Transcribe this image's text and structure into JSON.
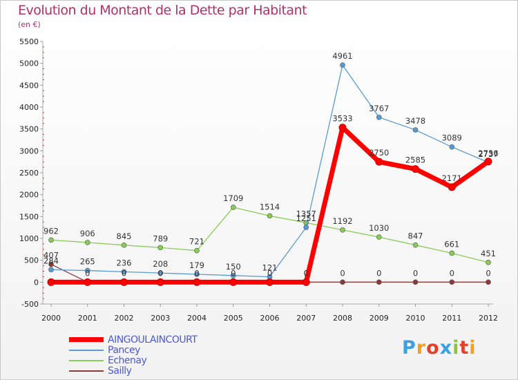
{
  "title": "Evolution du Montant de la Dette par Habitant",
  "subtitle": "(en €)",
  "brand": "Proxiti",
  "chart_data": {
    "type": "line",
    "title": "Evolution du Montant de la Dette par Habitant",
    "ylabel": "(en €)",
    "xlabel": "",
    "categories": [
      "2000",
      "2001",
      "2002",
      "2003",
      "2004",
      "2005",
      "2006",
      "2007",
      "2008",
      "2009",
      "2010",
      "2011",
      "2012"
    ],
    "ylim": [
      -500,
      5500
    ],
    "yticks": [
      -500,
      0,
      500,
      1000,
      1500,
      2000,
      2500,
      3000,
      3500,
      4000,
      4500,
      5000,
      5500
    ],
    "grid": false,
    "legend_position": "bottom-left",
    "series": [
      {
        "name": "AINGOULAINCOURT",
        "color": "#ff0000",
        "values": [
          0,
          0,
          0,
          0,
          0,
          0,
          0,
          0,
          3533,
          2750,
          2585,
          2171,
          2756
        ],
        "labels": [
          "",
          "",
          "",
          "",
          "",
          "",
          "",
          "0",
          "3533",
          "2750",
          "2585",
          "2171",
          "2756"
        ]
      },
      {
        "name": "Pancey",
        "color": "#5a9ad0",
        "values": [
          284,
          265,
          236,
          208,
          179,
          150,
          121,
          1251,
          4961,
          3767,
          3478,
          3089,
          2737
        ],
        "labels": [
          "284",
          "265",
          "236",
          "208",
          "179",
          "150",
          "121",
          "1251",
          "4961",
          "3767",
          "3478",
          "3089",
          "2737"
        ]
      },
      {
        "name": "Echenay",
        "color": "#88cc55",
        "values": [
          962,
          906,
          845,
          789,
          721,
          1709,
          1514,
          1357,
          1192,
          1030,
          847,
          661,
          451
        ],
        "labels": [
          "962",
          "906",
          "845",
          "789",
          "721",
          "1709",
          "1514",
          "1357",
          "1192",
          "1030",
          "847",
          "661",
          "451"
        ]
      },
      {
        "name": "Sailly",
        "color": "#8b3a3a",
        "values": [
          407,
          0,
          0,
          0,
          0,
          0,
          0,
          0,
          0,
          0,
          0,
          0,
          0
        ],
        "labels": [
          "407",
          "0",
          "0",
          "0",
          "0",
          "0",
          "0",
          "0",
          "0",
          "0",
          "0",
          "0",
          "0"
        ]
      }
    ]
  }
}
